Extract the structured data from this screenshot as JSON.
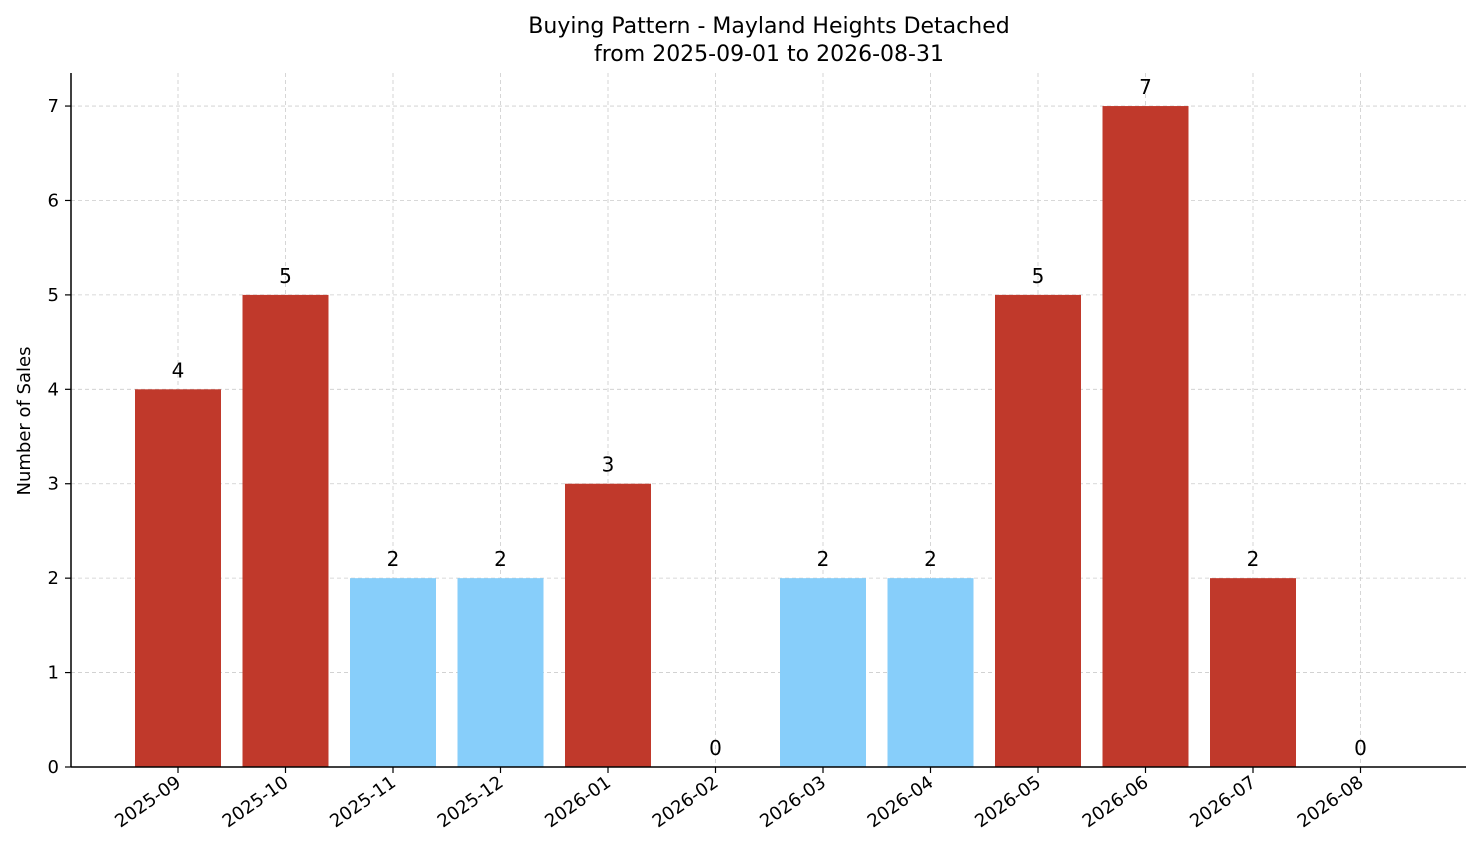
{
  "chart_data": {
    "type": "bar",
    "title": "Buying Pattern - Mayland Heights Detached",
    "subtitle": "from 2025-09-01 to 2026-08-31",
    "xlabel": "",
    "ylabel": "Number of Sales",
    "categories": [
      "2025-09",
      "2025-10",
      "2025-11",
      "2025-12",
      "2026-01",
      "2026-02",
      "2026-03",
      "2026-04",
      "2026-05",
      "2026-06",
      "2026-07",
      "2026-08"
    ],
    "values": [
      4,
      5,
      2,
      2,
      3,
      0,
      2,
      2,
      5,
      7,
      2,
      0
    ],
    "bar_colors": [
      "#c0392b",
      "#c0392b",
      "#87cefa",
      "#87cefa",
      "#c0392b",
      "#c0392b",
      "#87cefa",
      "#87cefa",
      "#c0392b",
      "#c0392b",
      "#c0392b",
      "#c0392b"
    ],
    "ylim": [
      0,
      7.35
    ],
    "yticks": [
      0,
      1,
      2,
      3,
      4,
      5,
      6,
      7
    ],
    "grid": true,
    "data_labels": true
  }
}
